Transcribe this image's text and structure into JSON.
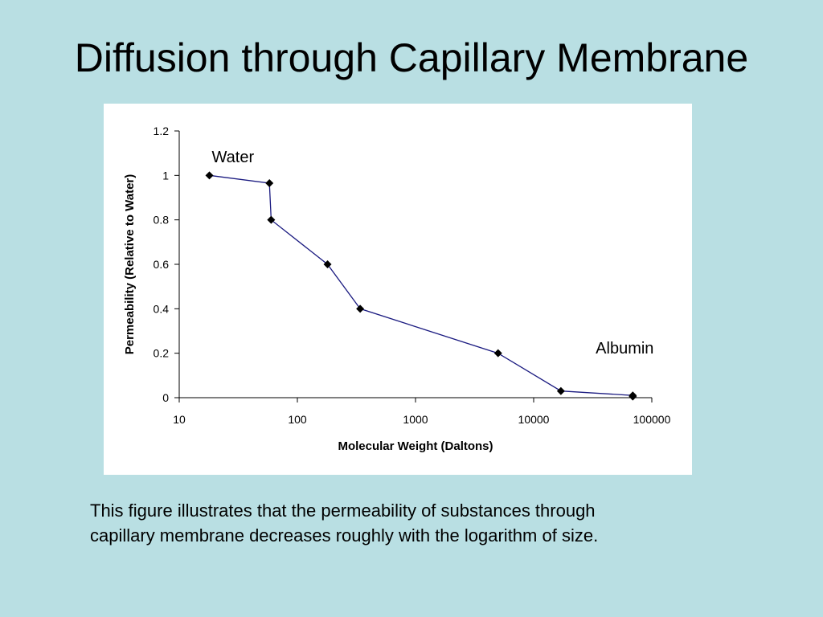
{
  "slide": {
    "title": "Diffusion through Capillary Membrane",
    "caption_lines": [
      "This figure illustrates that the permeability of substances through",
      "capillary membrane decreases roughly with the logarithm of size."
    ]
  },
  "chart_data": {
    "type": "line",
    "xscale": "log",
    "xlim": [
      10,
      100000
    ],
    "ylim": [
      0,
      1.2
    ],
    "x_ticks": [
      10,
      100,
      1000,
      10000,
      100000
    ],
    "x_tick_labels": [
      "10",
      "100",
      "1000",
      "10000",
      "100000"
    ],
    "y_ticks": [
      0,
      0.2,
      0.4,
      0.6,
      0.8,
      1,
      1.2
    ],
    "y_tick_labels": [
      "0",
      "0.2",
      "0.4",
      "0.6",
      "0.8",
      "1",
      "1.2"
    ],
    "xlabel": "Molecular Weight (Daltons)",
    "ylabel": "Permeability (Relative to Water)",
    "grid": false,
    "legend": "none",
    "line_color": "#1a1a80",
    "marker_color": "#000000",
    "series": [
      {
        "x": [
          18,
          58,
          60,
          180,
          340,
          5000,
          17000,
          69000,
          69000
        ],
        "y": [
          1.0,
          0.965,
          0.8,
          0.6,
          0.4,
          0.2,
          0.03,
          0.01,
          0.005
        ]
      }
    ],
    "annotations": [
      {
        "text": "Water",
        "x": 18,
        "y": 1.08
      },
      {
        "text": "Albumin",
        "x": 69000,
        "y": 0.22
      }
    ]
  },
  "colors": {
    "background": "#b9dfe3",
    "panel": "#ffffff"
  }
}
